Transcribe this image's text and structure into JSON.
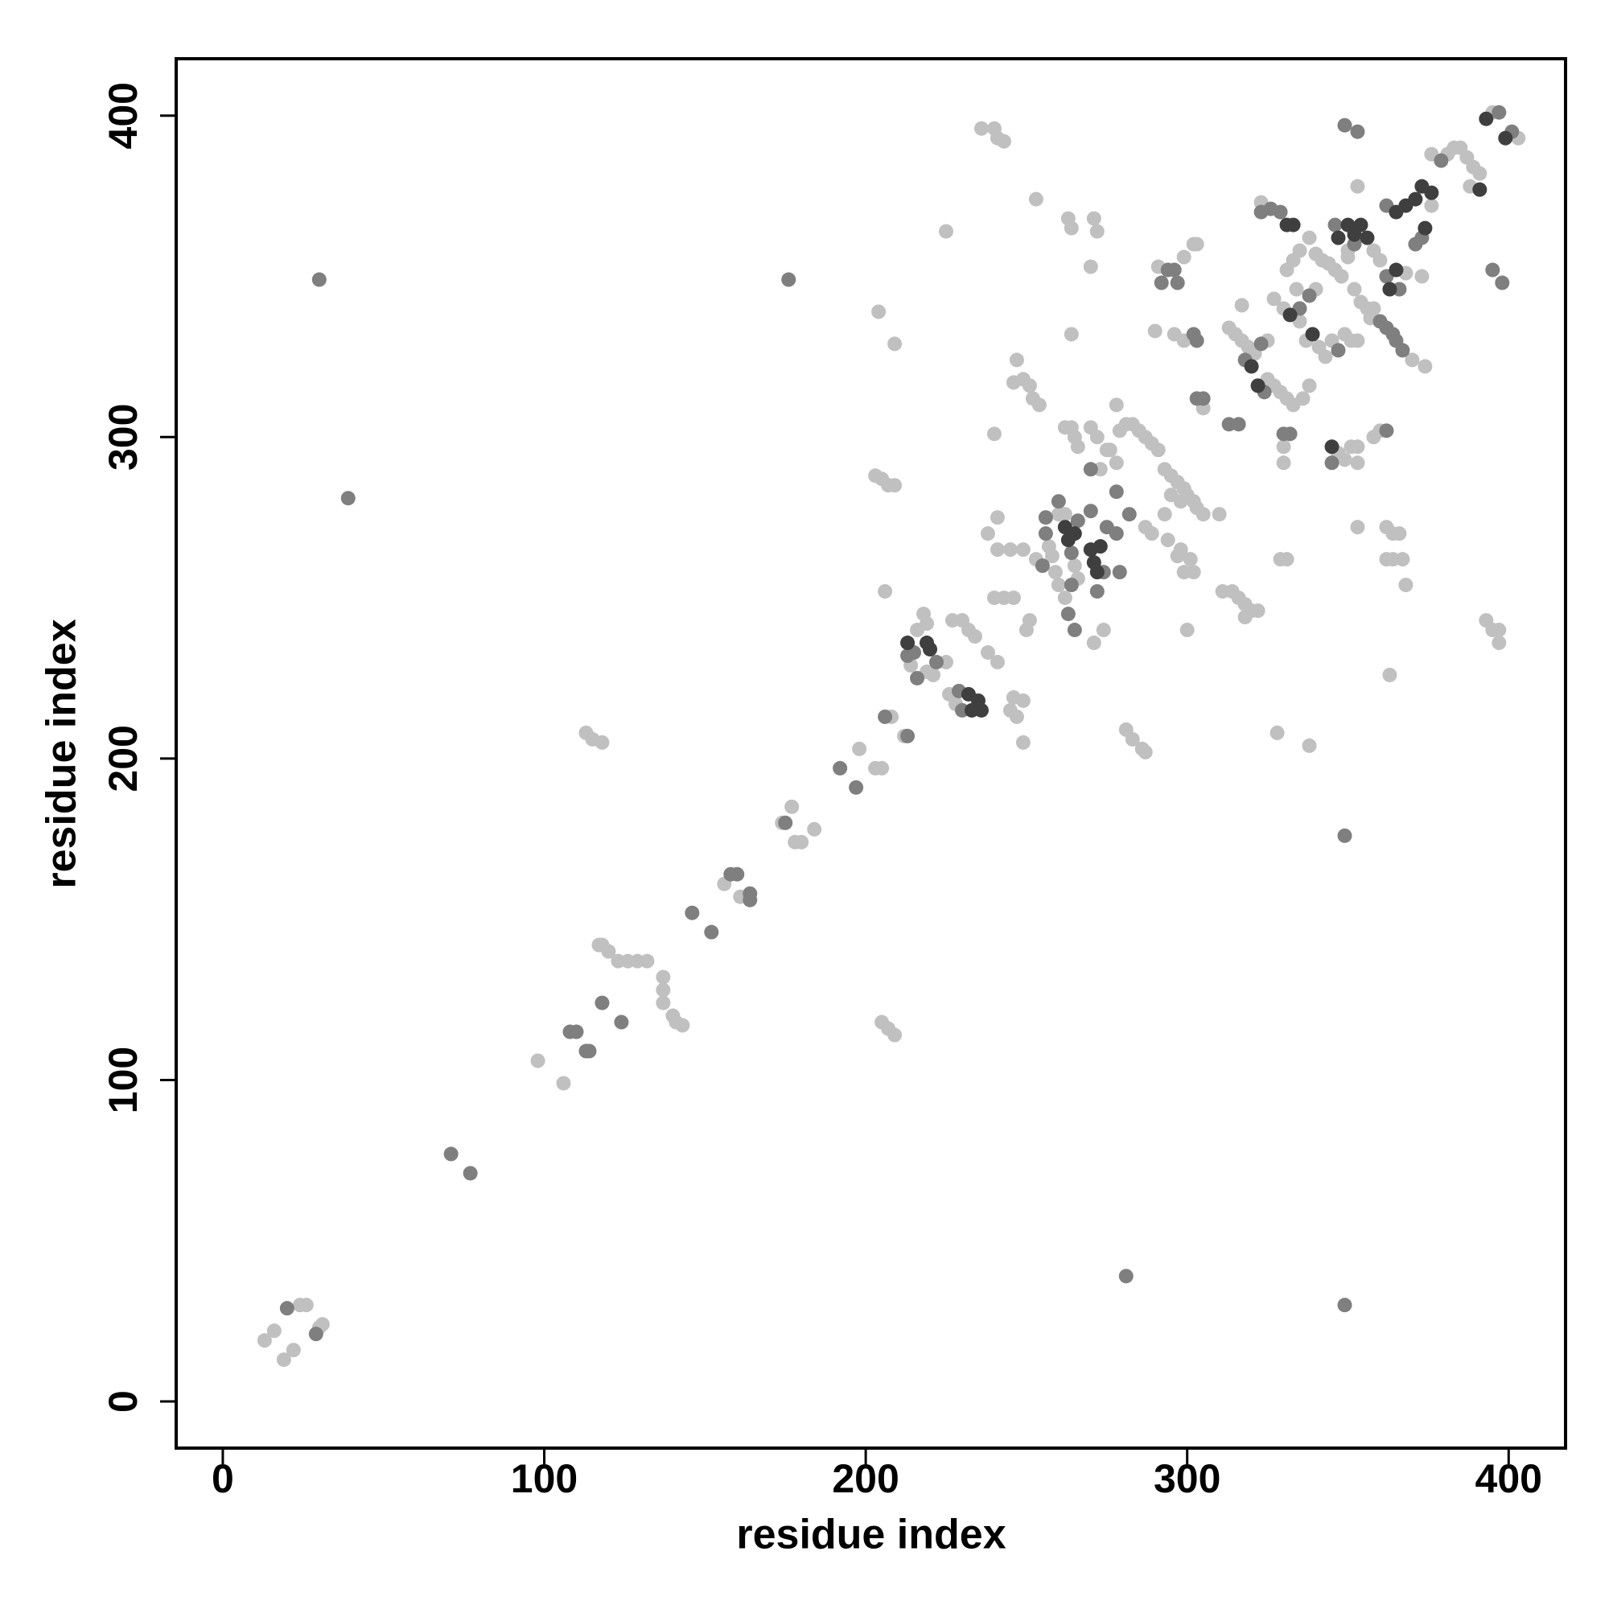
{
  "chart_data": {
    "type": "scatter",
    "xlabel": "residue index",
    "ylabel": "residue index",
    "xlim": [
      -14.5,
      417.7
    ],
    "ylim": [
      -14.5,
      417.7
    ],
    "xticks": [
      0,
      100,
      200,
      300,
      400
    ],
    "yticks": [
      0,
      100,
      200,
      300,
      400
    ],
    "grid": false,
    "series": [
      {
        "color": "#c0c0c0",
        "x": [
          13,
          16,
          19,
          22,
          24,
          26,
          30,
          31,
          98,
          106,
          113,
          115,
          118,
          117,
          118,
          120,
          123,
          126,
          129,
          132,
          137,
          137,
          137,
          140,
          141,
          143,
          156,
          161,
          174,
          177,
          178,
          180,
          184,
          198,
          203,
          205,
          203,
          205,
          207,
          209,
          204,
          209,
          205,
          207,
          209,
          206,
          208,
          212,
          214,
          218,
          219,
          221,
          225,
          216,
          219,
          225,
          227,
          230,
          226,
          228,
          232,
          234,
          238,
          241,
          236,
          240,
          241,
          243,
          238,
          241,
          241,
          240,
          243,
          245,
          246,
          245,
          246,
          247,
          249,
          247,
          246,
          249,
          251,
          252,
          254,
          240,
          249,
          250,
          251,
          249,
          253,
          257,
          258,
          253,
          260,
          262,
          265,
          266,
          260,
          262,
          259,
          274,
          271,
          262,
          264,
          265,
          266,
          270,
          272,
          275,
          273,
          278,
          276,
          279,
          281,
          283,
          285,
          287,
          289,
          291,
          278,
          263,
          264,
          271,
          272,
          270,
          264,
          281,
          283,
          286,
          287,
          287,
          289,
          293,
          294,
          297,
          298,
          299,
          301,
          302,
          300,
          293,
          295,
          297,
          299,
          300,
          302,
          303,
          305,
          295,
          298,
          310,
          291,
          299,
          302,
          303,
          290,
          296,
          299,
          305,
          311,
          314,
          316,
          318,
          320,
          318,
          313,
          315,
          317,
          319,
          321,
          325,
          317,
          323,
          325,
          327,
          329,
          331,
          333,
          336,
          338,
          322,
          328,
          338,
          329,
          331,
          330,
          330,
          327,
          330,
          334,
          340,
          331,
          333,
          335,
          338,
          340,
          342,
          344,
          346,
          348,
          350,
          352,
          354,
          356,
          357,
          335,
          337,
          341,
          343,
          345,
          349,
          351,
          353,
          350,
          353,
          347,
          349,
          351,
          353,
          353,
          358,
          360,
          353,
          362,
          364,
          366,
          362,
          364,
          367,
          358,
          370,
          374,
          358,
          360,
          368,
          373,
          376,
          368,
          363,
          376,
          381,
          383,
          385,
          387,
          389,
          391,
          388,
          395,
          403,
          393,
          395,
          397,
          397
        ],
        "values": [
          19,
          22,
          13,
          16,
          30,
          30,
          23,
          24,
          106,
          99,
          208,
          206,
          205,
          142,
          142,
          140,
          137,
          137,
          137,
          137,
          132,
          128,
          124,
          120,
          118,
          117,
          161,
          157,
          180,
          185,
          174,
          174,
          178,
          203,
          197,
          197,
          288,
          287,
          285,
          285,
          339,
          329,
          118,
          116,
          114,
          252,
          213,
          207,
          229,
          245,
          227,
          226,
          230,
          240,
          242,
          364,
          243,
          243,
          220,
          217,
          240,
          238,
          233,
          230,
          396,
          396,
          393,
          392,
          270,
          275,
          265,
          250,
          250,
          265,
          250,
          215,
          219,
          213,
          218,
          324,
          317,
          318,
          316,
          312,
          310,
          301,
          205,
          240,
          243,
          265,
          262,
          266,
          263,
          374,
          276,
          276,
          260,
          256,
          254,
          250,
          258,
          240,
          236,
          303,
          303,
          300,
          297,
          303,
          300,
          296,
          290,
          292,
          296,
          302,
          304,
          304,
          302,
          300,
          298,
          296,
          310,
          368,
          365,
          368,
          364,
          353,
          332,
          209,
          206,
          203,
          202,
          272,
          270,
          276,
          268,
          263,
          265,
          258,
          262,
          258,
          240,
          290,
          288,
          286,
          284,
          282,
          280,
          278,
          276,
          282,
          280,
          276,
          353,
          356,
          360,
          360,
          333,
          332,
          330,
          309,
          252,
          252,
          250,
          248,
          246,
          244,
          334,
          332,
          330,
          328,
          326,
          330,
          341,
          373,
          318,
          316,
          314,
          312,
          310,
          312,
          316,
          246,
          208,
          204,
          262,
          262,
          292,
          297,
          343,
          340,
          346,
          346,
          352,
          355,
          358,
          362,
          357,
          355,
          354,
          352,
          350,
          356,
          346,
          342,
          340,
          337,
          336,
          330,
          328,
          325,
          330,
          332,
          330,
          330,
          358,
          378,
          295,
          293,
          297,
          297,
          292,
          300,
          302,
          272,
          272,
          270,
          270,
          262,
          262,
          262,
          340,
          324,
          322,
          358,
          355,
          351,
          350,
          372,
          254,
          226,
          388,
          388,
          390,
          390,
          387,
          384,
          382,
          378,
          401,
          393,
          243,
          240,
          240,
          236
        ]
      },
      {
        "color": "#7f7f7f",
        "x": [
          20,
          29,
          30,
          39,
          71,
          77,
          108,
          110,
          113,
          114,
          118,
          124,
          146,
          152,
          158,
          160,
          164,
          164,
          175,
          176,
          192,
          197,
          206,
          213,
          213,
          215,
          216,
          222,
          229,
          230,
          255,
          256,
          256,
          260,
          266,
          264,
          264,
          263,
          265,
          272,
          270,
          275,
          274,
          278,
          278,
          282,
          279,
          270,
          281,
          292,
          294,
          296,
          297,
          302,
          303,
          303,
          305,
          313,
          316,
          318,
          323,
          323,
          326,
          329,
          324,
          330,
          332,
          335,
          338,
          347,
          346,
          352,
          349,
          353,
          345,
          362,
          349,
          349,
          360,
          362,
          364,
          365,
          367,
          362,
          366,
          371,
          373,
          362,
          379,
          397,
          401,
          395,
          398
        ],
        "values": [
          29,
          21,
          349,
          281,
          77,
          71,
          115,
          115,
          109,
          109,
          124,
          118,
          152,
          146,
          164,
          164,
          158,
          156,
          180,
          349,
          197,
          191,
          213,
          207,
          232,
          233,
          225,
          230,
          221,
          215,
          260,
          270,
          275,
          280,
          274,
          264,
          254,
          245,
          240,
          252,
          277,
          272,
          258,
          283,
          270,
          276,
          258,
          290,
          39,
          348,
          352,
          352,
          348,
          332,
          330,
          312,
          312,
          304,
          304,
          324,
          329,
          370,
          371,
          370,
          314,
          301,
          301,
          340,
          344,
          327,
          366,
          360,
          397,
          395,
          292,
          302,
          176,
          30,
          336,
          334,
          332,
          330,
          327,
          350,
          346,
          360,
          362,
          372,
          386,
          401,
          395,
          352,
          348
        ]
      },
      {
        "color": "#3f3f3f",
        "x": [
          213,
          219,
          220,
          232,
          233,
          235,
          236,
          262,
          263,
          265,
          270,
          271,
          272,
          273,
          320,
          331,
          333,
          322,
          332,
          339,
          347,
          350,
          352,
          354,
          356,
          345,
          363,
          365,
          374,
          365,
          368,
          371,
          373,
          376,
          391,
          393,
          399
        ],
        "values": [
          236,
          236,
          234,
          220,
          215,
          218,
          215,
          272,
          268,
          270,
          265,
          261,
          258,
          266,
          322,
          366,
          366,
          316,
          338,
          332,
          362,
          366,
          363,
          366,
          362,
          297,
          346,
          352,
          365,
          370,
          372,
          374,
          378,
          376,
          377,
          399,
          393
        ]
      }
    ]
  }
}
